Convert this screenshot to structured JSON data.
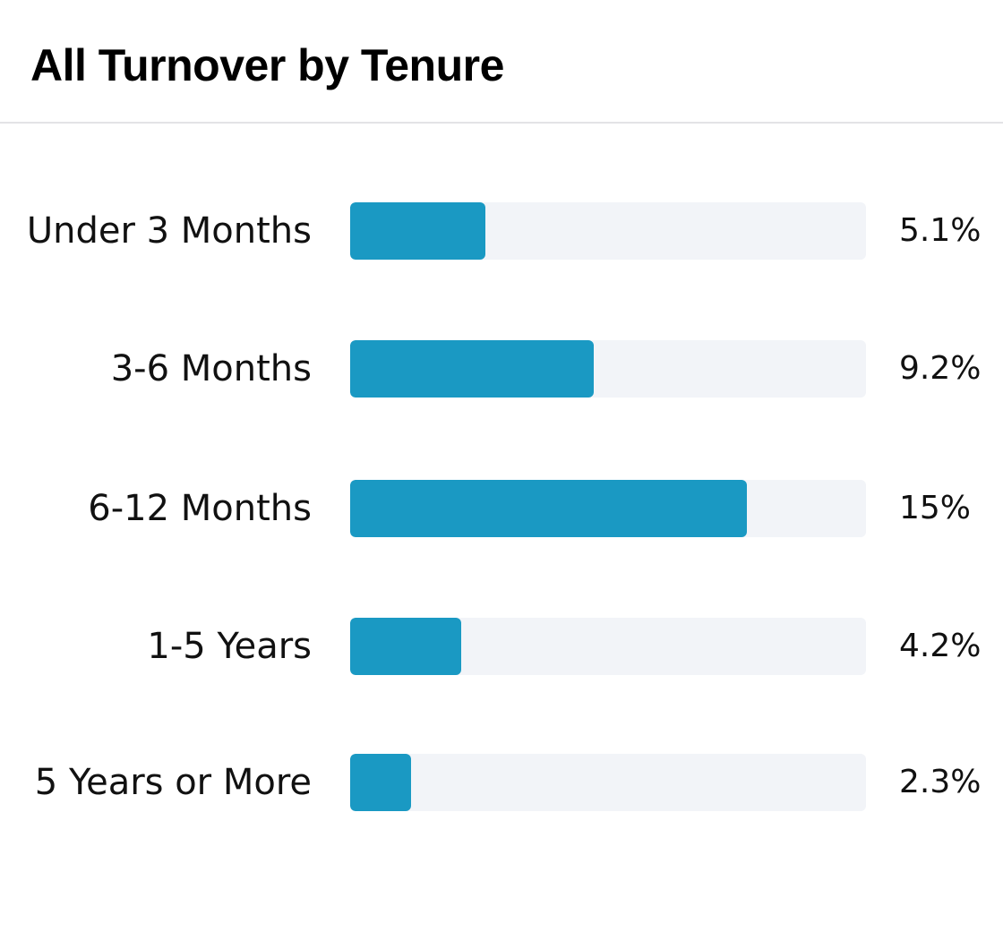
{
  "card": {
    "title": "All Turnover by Tenure"
  },
  "colors": {
    "bar": "#1a99c3",
    "track": "#f2f4f8",
    "divider": "#e3e3e6"
  },
  "chart_data": {
    "type": "bar",
    "orientation": "horizontal",
    "title": "All Turnover by Tenure",
    "xlabel": "",
    "ylabel": "",
    "xlim": [
      0,
      19.5
    ],
    "grid": false,
    "legend": "none",
    "categories": [
      "Under 3 Months",
      "3-6 Months",
      "6-12 Months",
      "1-5 Years",
      "5 Years or More"
    ],
    "values": [
      5.1,
      9.2,
      15,
      4.2,
      2.3
    ],
    "value_labels": [
      "5.1%",
      "9.2%",
      "15%",
      "4.2%",
      "2.3%"
    ]
  }
}
